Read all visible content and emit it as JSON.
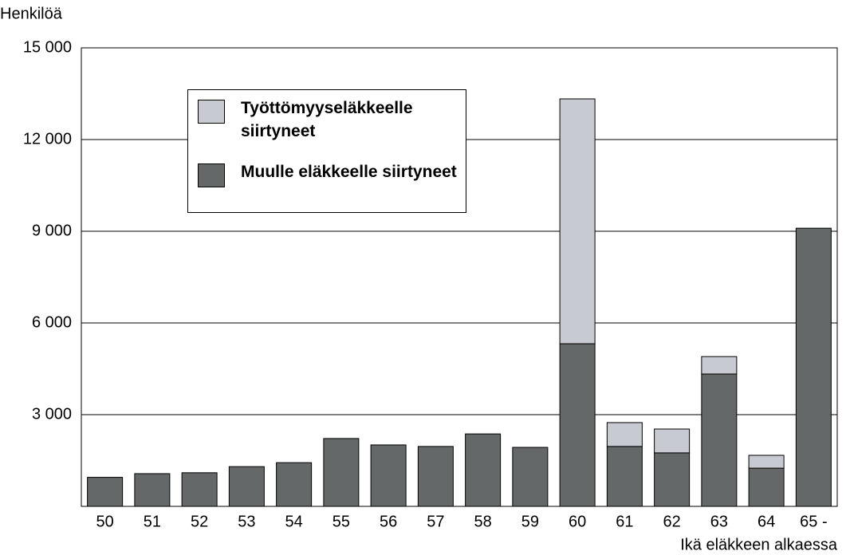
{
  "chart_data": {
    "type": "stacked-bar",
    "y_label": "Henkilöä",
    "x_label": "Ikä eläkkeen alkaessa",
    "categories": [
      "50",
      "51",
      "52",
      "53",
      "54",
      "55",
      "56",
      "57",
      "58",
      "59",
      "60",
      "61",
      "62",
      "63",
      "64",
      "65 -"
    ],
    "series": [
      {
        "name": "Työttömyyseläkkeelle siirtyneet",
        "color": "#c8cad2",
        "values": [
          0,
          0,
          0,
          0,
          0,
          0,
          0,
          0,
          0,
          0,
          8010,
          780,
          780,
          570,
          420,
          0
        ]
      },
      {
        "name": "Muulle eläkkeelle siirtyneet",
        "color": "#646868",
        "values": [
          950,
          1070,
          1100,
          1300,
          1430,
          2220,
          2010,
          1960,
          2370,
          1930,
          5320,
          1960,
          1750,
          4330,
          1250,
          9100
        ]
      }
    ],
    "ylim": [
      0,
      15000
    ],
    "yticks": [
      {
        "value": 3000,
        "label": "3 000"
      },
      {
        "value": 6000,
        "label": "6 000"
      },
      {
        "value": 9000,
        "label": "9 000"
      },
      {
        "value": 12000,
        "label": "12 000"
      },
      {
        "value": 15000,
        "label": "15 000"
      }
    ],
    "grid": true
  }
}
